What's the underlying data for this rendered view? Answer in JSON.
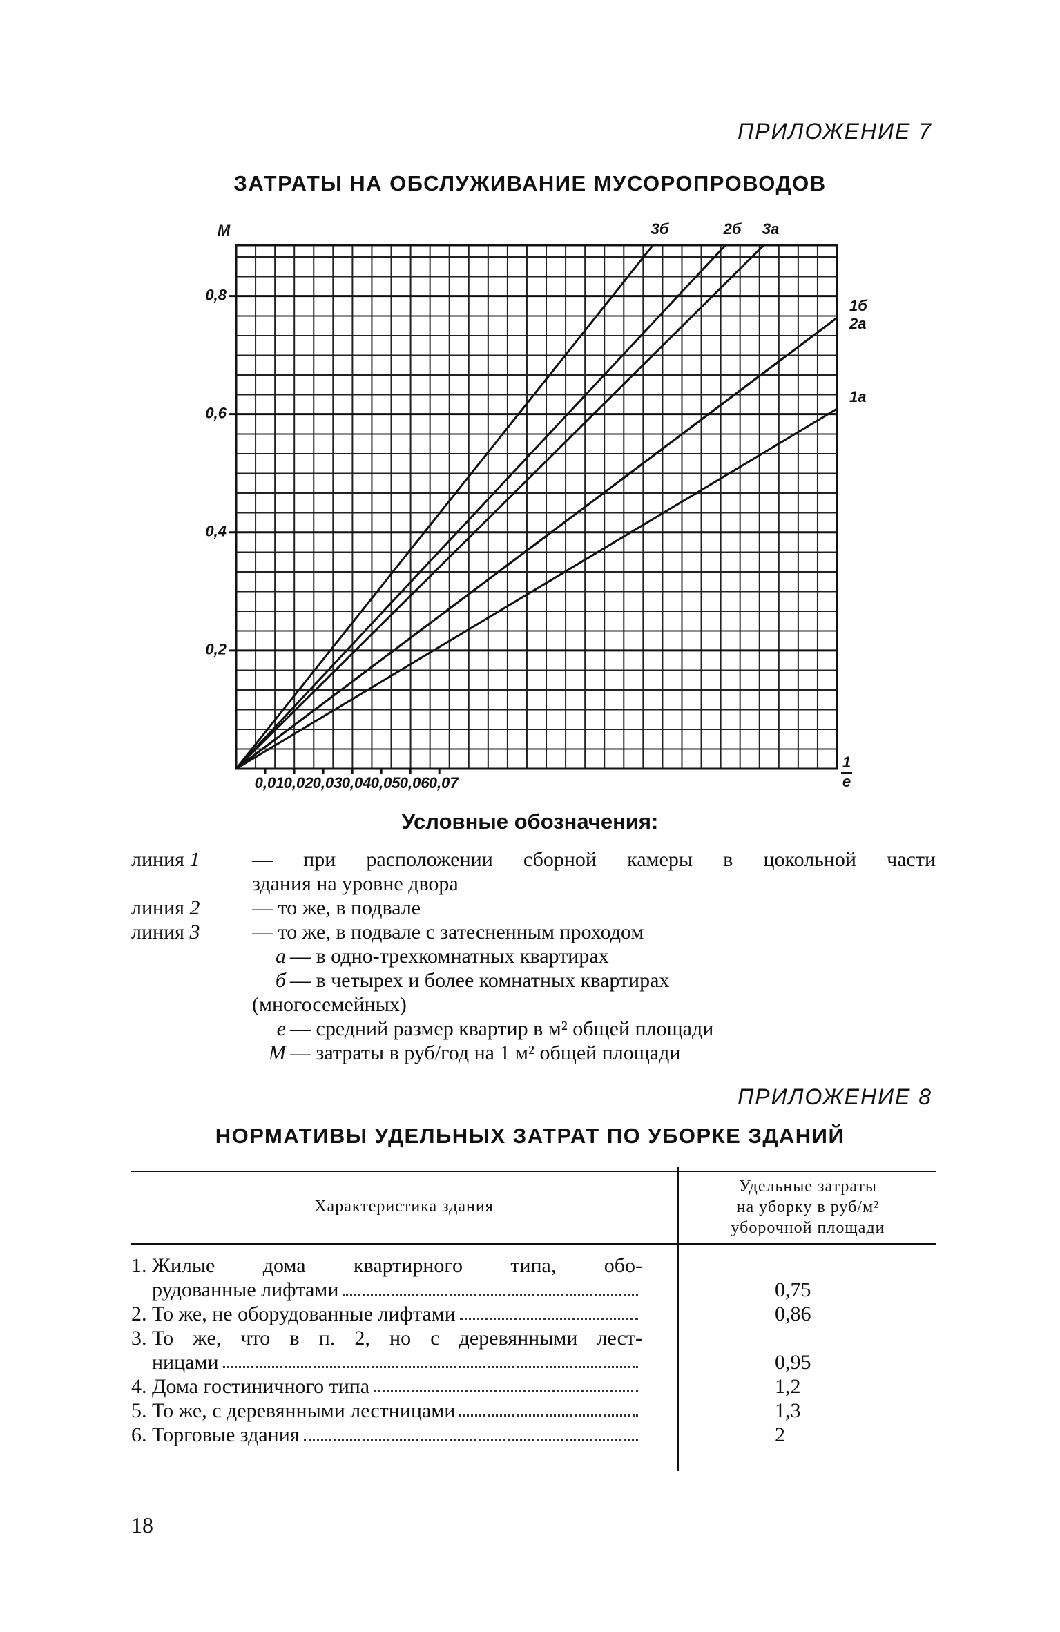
{
  "appendix7": "ПРИЛОЖЕНИЕ 7",
  "title7": "ЗАТРАТЫ НА ОБСЛУЖИВАНИЕ МУСОРОПРОВОДОВ",
  "chart_data": {
    "type": "line",
    "y_label": "М",
    "x_label": {
      "numerator": "1",
      "denominator": "е"
    },
    "xlim": [
      0,
      0.207
    ],
    "ylim": [
      0,
      0.886
    ],
    "xticks": [
      {
        "value": 0.01,
        "label": "0,01"
      },
      {
        "value": 0.02,
        "label": "0,02"
      },
      {
        "value": 0.03,
        "label": "0,03"
      },
      {
        "value": 0.04,
        "label": "0,04"
      },
      {
        "value": 0.05,
        "label": "0,05"
      },
      {
        "value": 0.06,
        "label": "0,06"
      },
      {
        "value": 0.07,
        "label": "0,07"
      }
    ],
    "yticks": [
      {
        "value": 0.2,
        "label": "0,2"
      },
      {
        "value": 0.4,
        "label": "0,4"
      },
      {
        "value": 0.6,
        "label": "0,6"
      },
      {
        "value": 0.8,
        "label": "0,8"
      }
    ],
    "grid": true,
    "series": [
      {
        "name": "3б",
        "color": "#111111",
        "x": [
          0,
          0.1436
        ],
        "y": [
          0,
          0.886
        ]
      },
      {
        "name": "2б",
        "color": "#111111",
        "x": [
          0,
          0.1686
        ],
        "y": [
          0,
          0.886
        ]
      },
      {
        "name": "3а",
        "color": "#111111",
        "x": [
          0,
          0.1818
        ],
        "y": [
          0,
          0.886
        ]
      },
      {
        "name": "1б",
        "color": "#111111",
        "x": [
          0,
          0.207
        ],
        "y": [
          0,
          0.763
        ]
      },
      {
        "name": "2а",
        "color": "#111111",
        "x": [
          0,
          0.207
        ],
        "y": [
          0,
          0.763
        ]
      },
      {
        "name": "1а",
        "color": "#111111",
        "x": [
          0,
          0.207
        ],
        "y": [
          0,
          0.609
        ]
      }
    ]
  },
  "legend": {
    "heading": "Условные обозначения:",
    "items": [
      {
        "word": "линия",
        "key": "1",
        "lines": [
          "— при расположении сборной камеры в цокольной части",
          "здания на уровне двора"
        ]
      },
      {
        "word": "линия",
        "key": "2",
        "lines": [
          "— то же, в подвале"
        ]
      },
      {
        "word": "линия",
        "key": "3",
        "lines": [
          "— то же, в подвале с затесненным проходом"
        ]
      },
      {
        "key": "а",
        "lines": [
          "— в одно-трехкомнатных квартирах"
        ]
      },
      {
        "key": "б",
        "lines": [
          "— в четырех и более комнатных квартирах",
          "(многосемейных)"
        ]
      },
      {
        "key": "е",
        "lines": [
          "— средний размер квартир в м² общей площади"
        ]
      },
      {
        "key": "М",
        "lines": [
          "— затраты в руб/год на 1 м² общей площади"
        ]
      }
    ]
  },
  "appendix8": "ПРИЛОЖЕНИЕ 8",
  "title8": "НОРМАТИВЫ УДЕЛЬНЫХ ЗАТРАТ ПО УБОРКЕ ЗДАНИЙ",
  "table": {
    "header": [
      "Характеристика здания",
      [
        "Удельные затраты",
        "на уборку в руб/м²",
        "уборочной площади"
      ]
    ],
    "rows": [
      {
        "number": "1.",
        "lines": [
          "Жилые дома квартирного типа, обо-",
          "рудованные лифтами"
        ],
        "value": "0,75"
      },
      {
        "number": "2.",
        "lines": [
          "То же, не оборудованные лифтами"
        ],
        "value": "0,86"
      },
      {
        "number": "3.",
        "lines": [
          "То же, что в п. 2, но с деревянными лест-",
          "ницами"
        ],
        "value": "0,95"
      },
      {
        "number": "4.",
        "lines": [
          "Дома гостиничного типа"
        ],
        "value": "1,2"
      },
      {
        "number": "5.",
        "lines": [
          "То же, с деревянными лестницами"
        ],
        "value": "1,3"
      },
      {
        "number": "6.",
        "lines": [
          "Торговые здания"
        ],
        "value": "2"
      }
    ]
  },
  "page_number": "18"
}
